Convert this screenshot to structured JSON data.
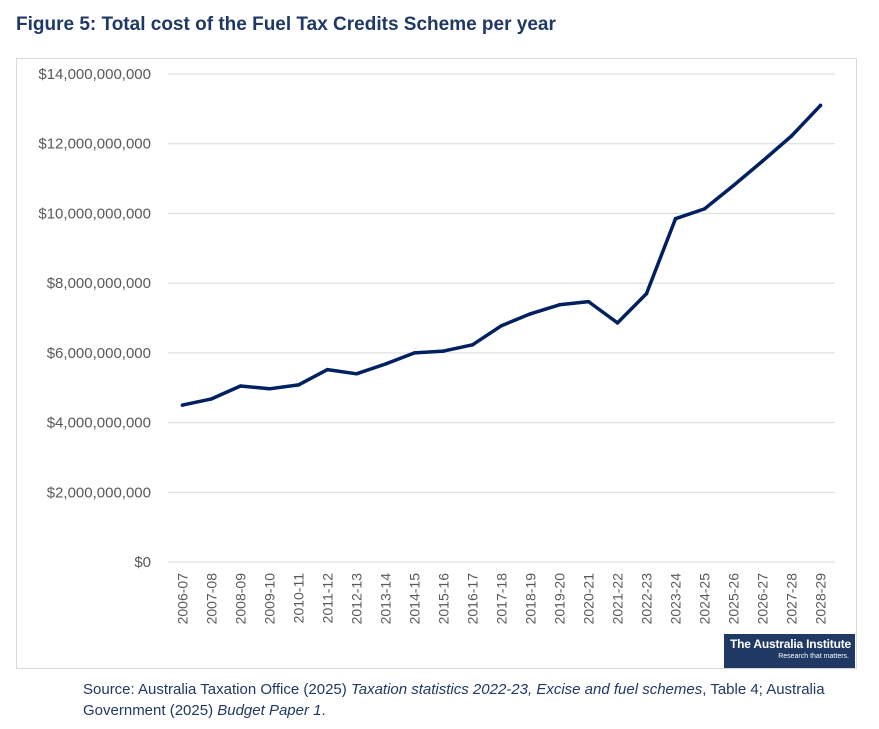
{
  "figure": {
    "title": "Figure 5: Total cost of the Fuel Tax Credits Scheme per year"
  },
  "brand": {
    "name": "The Australia Institute",
    "tagline": "Research that matters."
  },
  "source": {
    "prefix": "Source: Australia Taxation Office (2025) ",
    "title1": "Taxation statistics 2022-23, Excise and fuel schemes",
    "mid": ", Table 4; Australia Government (2025) ",
    "title2": "Budget Paper 1",
    "suffix": "."
  },
  "colors": {
    "line": "#002060",
    "title": "#1f3864",
    "grid": "#d9d9d9",
    "axis_text": "#595959"
  },
  "chart_data": {
    "type": "line",
    "title": "Figure 5: Total cost of the Fuel Tax Credits Scheme per year",
    "xlabel": "",
    "ylabel": "",
    "ylim": [
      0,
      14000000000
    ],
    "y_ticks": [
      0,
      2000000000,
      4000000000,
      6000000000,
      8000000000,
      10000000000,
      12000000000,
      14000000000
    ],
    "y_tick_labels": [
      "$0",
      "$2,000,000,000",
      "$4,000,000,000",
      "$6,000,000,000",
      "$8,000,000,000",
      "$10,000,000,000",
      "$12,000,000,000",
      "$14,000,000,000"
    ],
    "grid": true,
    "legend": "none",
    "categories": [
      "2006-07",
      "2007-08",
      "2008-09",
      "2009-10",
      "2010-11",
      "2011-12",
      "2012-13",
      "2013-14",
      "2014-15",
      "2015-16",
      "2016-17",
      "2017-18",
      "2018-19",
      "2019-20",
      "2020-21",
      "2021-22",
      "2022-23",
      "2023-24",
      "2024-25",
      "2025-26",
      "2026-27",
      "2027-28",
      "2028-29"
    ],
    "series": [
      {
        "name": "Total cost",
        "values": [
          4500000000,
          4680000000,
          5050000000,
          4970000000,
          5080000000,
          5520000000,
          5400000000,
          5680000000,
          6000000000,
          6050000000,
          6230000000,
          6780000000,
          7120000000,
          7380000000,
          7470000000,
          6860000000,
          7700000000,
          9850000000,
          10130000000,
          10800000000,
          11500000000,
          12220000000,
          13100000000
        ]
      }
    ]
  }
}
